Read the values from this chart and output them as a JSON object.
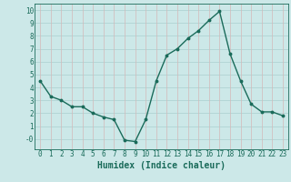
{
  "x": [
    0,
    1,
    2,
    3,
    4,
    5,
    6,
    7,
    8,
    9,
    10,
    11,
    12,
    13,
    14,
    15,
    16,
    17,
    18,
    19,
    20,
    21,
    22,
    23
  ],
  "y": [
    4.5,
    3.3,
    3.0,
    2.5,
    2.5,
    2.0,
    1.7,
    1.5,
    -0.1,
    -0.2,
    1.5,
    4.5,
    6.5,
    7.0,
    7.8,
    8.4,
    9.2,
    9.9,
    6.6,
    4.5,
    2.7,
    2.1,
    2.1,
    1.8
  ],
  "xlabel": "Humidex (Indice chaleur)",
  "ylim": [
    -0.8,
    10.5
  ],
  "xlim": [
    -0.5,
    23.5
  ],
  "yticks": [
    0,
    1,
    2,
    3,
    4,
    5,
    6,
    7,
    8,
    9,
    10
  ],
  "ytick_labels": [
    "-0",
    "1",
    "2",
    "3",
    "4",
    "5",
    "6",
    "7",
    "8",
    "9",
    "10"
  ],
  "xticks": [
    0,
    1,
    2,
    3,
    4,
    5,
    6,
    7,
    8,
    9,
    10,
    11,
    12,
    13,
    14,
    15,
    16,
    17,
    18,
    19,
    20,
    21,
    22,
    23
  ],
  "line_color": "#1a6b5a",
  "marker": "o",
  "marker_size": 1.8,
  "bg_color": "#cce8e8",
  "teal_grid_color": "#aacfcf",
  "pink_grid_color": "#d4b8b8",
  "line_width": 1.0,
  "xlabel_fontsize": 7,
  "tick_fontsize": 5.5
}
